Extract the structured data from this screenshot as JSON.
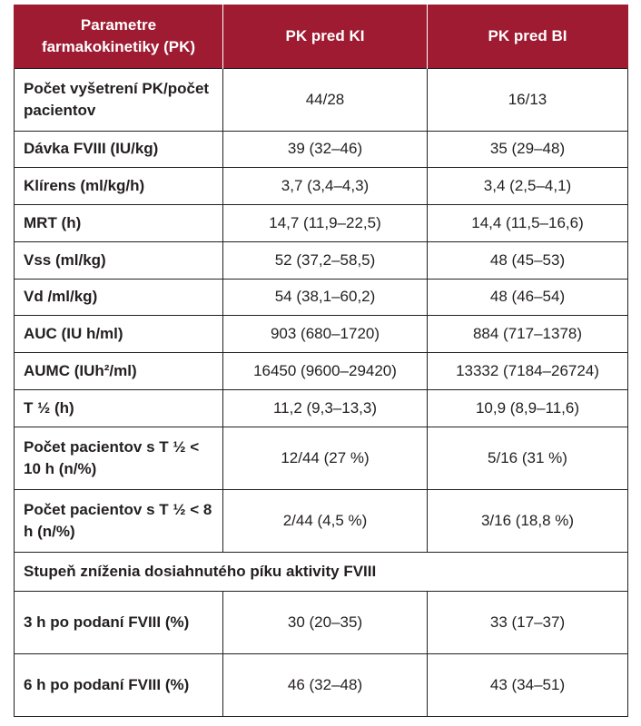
{
  "table": {
    "headers": [
      "Parametre farmakokinetiky (PK)",
      "PK pred KI",
      "PK pred BI"
    ],
    "rows": [
      {
        "label": "Počet vyšetrení PK/počet pacientov",
        "ki": "44/28",
        "bi": "16/13"
      },
      {
        "label": "Dávka FVIII (IU/kg)",
        "ki": "39 (32–46)",
        "bi": "35 (29–48)"
      },
      {
        "label": "Klírens (ml/kg/h)",
        "ki": "3,7 (3,4–4,3)",
        "bi": "3,4  (2,5–4,1)"
      },
      {
        "label": "MRT (h)",
        "ki": "14,7 (11,9–22,5)",
        "bi": "14,4 (11,5–16,6)"
      },
      {
        "label": "Vss (ml/kg)",
        "ki": "52 (37,2–58,5)",
        "bi": "48 (45–53)"
      },
      {
        "label": "Vd /ml/kg)",
        "ki": "54 (38,1–60,2)",
        "bi": "48 (46–54)"
      },
      {
        "label": "AUC (IU h/ml)",
        "ki": "903 (680–1720)",
        "bi": "884 (717–1378)"
      },
      {
        "label": "AUMC (IUh²/ml)",
        "ki": "16450 (9600–29420)",
        "bi": "13332 (7184–26724)"
      },
      {
        "label": "T ½ (h)",
        "ki": "11,2 (9,3–13,3)",
        "bi": "10,9 (8,9–11,6)"
      },
      {
        "label": "Počet pacientov s T ½ < 10 h (n/%)",
        "ki": "12/44 (27 %)",
        "bi": "5/16 (31 %)"
      },
      {
        "label": "Počet pacientov s T ½ < 8 h (n/%)",
        "ki": "2/44 (4,5 %)",
        "bi": "3/16 (18,8 %)"
      }
    ],
    "section_title": "Stupeň zníženia dosiahnutého píku aktivity FVIII",
    "section_rows": [
      {
        "label": "3 h po podaní FVIII (%)",
        "ki": "30 (20–35)",
        "bi": "33 (17–37)"
      },
      {
        "label": "6 h po podaní FVIII (%)",
        "ki": "46 (32–48)",
        "bi": "43 (34–51)"
      }
    ]
  },
  "colors": {
    "header_bg": "#9e1b32",
    "header_text": "#ffffff",
    "text": "#231f20",
    "border": "#231f20"
  }
}
